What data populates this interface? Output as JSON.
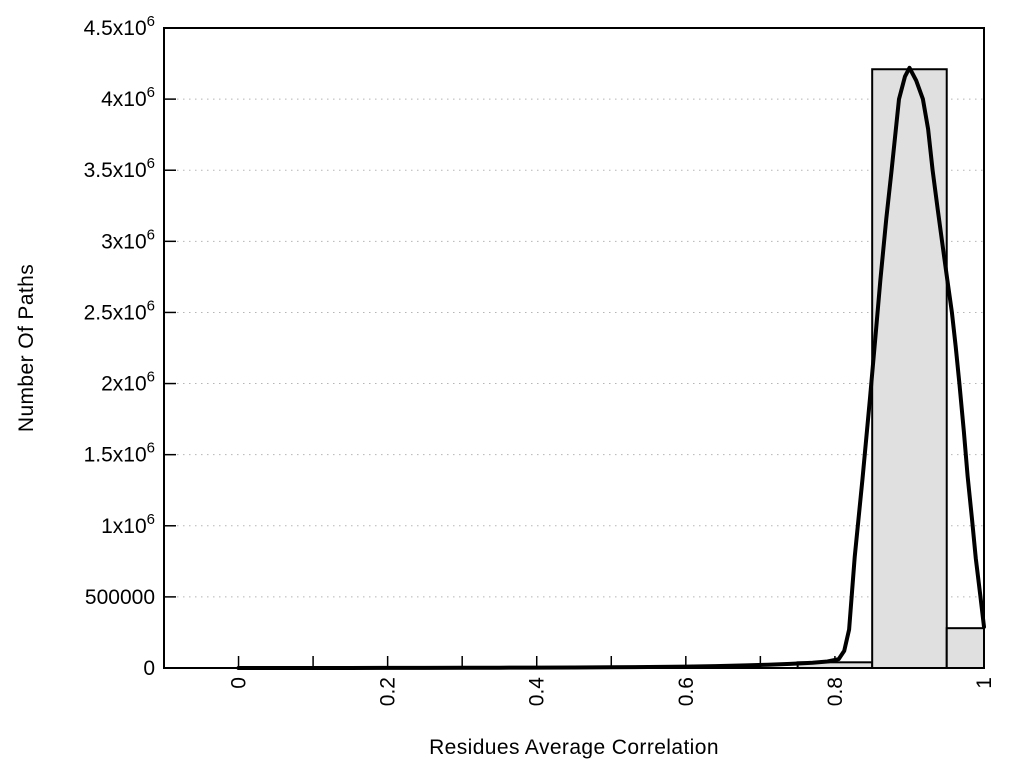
{
  "chart_data": {
    "type": "histogram+line",
    "title": "",
    "xlabel": "Residues Average Correlation",
    "ylabel": "Number Of Paths",
    "xlim": [
      -0.1,
      1.0
    ],
    "ylim": [
      0,
      4500000
    ],
    "legend": "none",
    "grid": {
      "horizontal_dotted": true,
      "color": "#b5b5b5"
    },
    "axis_color": "#000000",
    "background": "#ffffff",
    "x_ticks": [
      {
        "value": 0.0,
        "label": "0"
      },
      {
        "value": 0.1
      },
      {
        "value": 0.2,
        "label": "0.2"
      },
      {
        "value": 0.3
      },
      {
        "value": 0.4,
        "label": "0.4"
      },
      {
        "value": 0.5
      },
      {
        "value": 0.6,
        "label": "0.6"
      },
      {
        "value": 0.7
      },
      {
        "value": 0.8,
        "label": "0.8"
      },
      {
        "value": 0.9
      },
      {
        "value": 1.0,
        "label": "1"
      }
    ],
    "y_ticks": [
      {
        "value": 0,
        "base": "0"
      },
      {
        "value": 500000,
        "base": "500000"
      },
      {
        "value": 1000000,
        "base": "1x10",
        "sup": "6"
      },
      {
        "value": 1500000,
        "base": "1.5x10",
        "sup": "6"
      },
      {
        "value": 2000000,
        "base": "2x10",
        "sup": "6"
      },
      {
        "value": 2500000,
        "base": "2.5x10",
        "sup": "6"
      },
      {
        "value": 3000000,
        "base": "3x10",
        "sup": "6"
      },
      {
        "value": 3500000,
        "base": "3.5x10",
        "sup": "6"
      },
      {
        "value": 4000000,
        "base": "4x10",
        "sup": "6"
      },
      {
        "value": 4500000,
        "base": "4.5x10",
        "sup": "6"
      }
    ],
    "bars": {
      "fill": "#e0e0e0",
      "stroke": "#000000",
      "bins": [
        {
          "x1": 0.75,
          "x2": 0.85,
          "value": 40000
        },
        {
          "x1": 0.85,
          "x2": 0.95,
          "value": 4210000
        },
        {
          "x1": 0.95,
          "x2": 1.0,
          "value": 280000
        }
      ]
    },
    "curve": {
      "color": "#000000",
      "points": [
        [
          0.0,
          0
        ],
        [
          0.05,
          0
        ],
        [
          0.1,
          0
        ],
        [
          0.15,
          0
        ],
        [
          0.2,
          500
        ],
        [
          0.25,
          800
        ],
        [
          0.3,
          1200
        ],
        [
          0.35,
          1800
        ],
        [
          0.4,
          2600
        ],
        [
          0.45,
          3600
        ],
        [
          0.5,
          5000
        ],
        [
          0.55,
          7000
        ],
        [
          0.6,
          10000
        ],
        [
          0.64,
          13500
        ],
        [
          0.68,
          18000
        ],
        [
          0.71,
          23000
        ],
        [
          0.74,
          29000
        ],
        [
          0.77,
          37000
        ],
        [
          0.79,
          46000
        ],
        [
          0.805,
          62000
        ],
        [
          0.8125,
          120000
        ],
        [
          0.819,
          270000
        ],
        [
          0.8265,
          780000
        ],
        [
          0.837,
          1330000
        ],
        [
          0.847,
          1890000
        ],
        [
          0.854,
          2310000
        ],
        [
          0.861,
          2730000
        ],
        [
          0.869,
          3160000
        ],
        [
          0.876,
          3500000
        ],
        [
          0.886,
          4000000
        ],
        [
          0.894,
          4160000
        ],
        [
          0.9,
          4220000
        ],
        [
          0.909,
          4130000
        ],
        [
          0.918,
          4000000
        ],
        [
          0.925,
          3790000
        ],
        [
          0.931,
          3500000
        ],
        [
          0.938,
          3220000
        ],
        [
          0.945,
          2950000
        ],
        [
          0.951,
          2720000
        ],
        [
          0.957,
          2500000
        ],
        [
          0.962,
          2260000
        ],
        [
          0.967,
          2000000
        ],
        [
          0.973,
          1660000
        ],
        [
          0.978,
          1350000
        ],
        [
          0.984,
          1040000
        ],
        [
          0.989,
          770000
        ],
        [
          0.995,
          510000
        ],
        [
          1.0,
          290000
        ]
      ]
    }
  }
}
